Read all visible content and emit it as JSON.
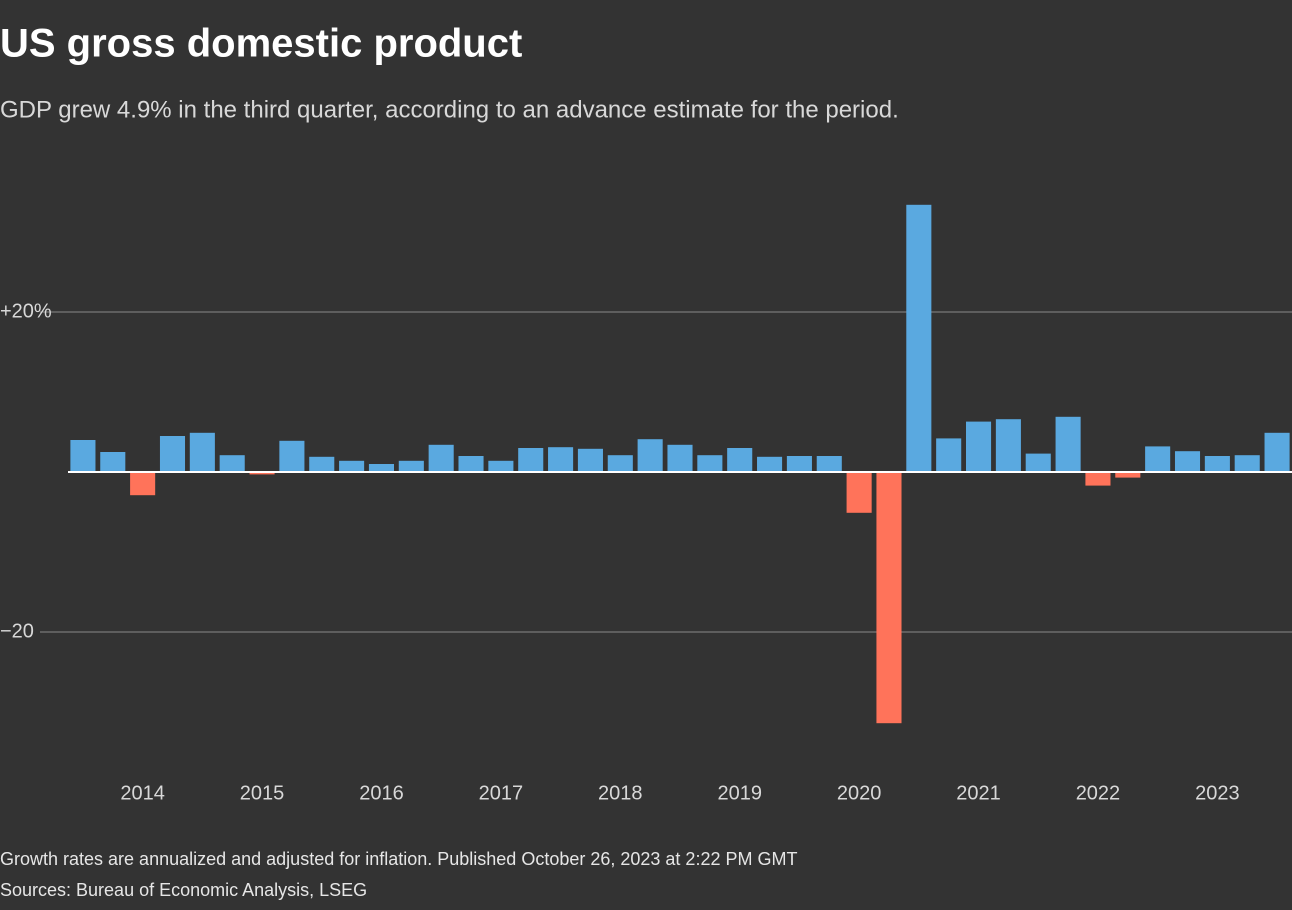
{
  "chart_data": {
    "type": "bar",
    "title": "US gross domestic product",
    "subtitle": "GDP grew 4.9% in the third quarter, according to an advance estimate for the period.",
    "categories": [
      null,
      null,
      "2014",
      null,
      null,
      null,
      "2015",
      null,
      null,
      null,
      "2016",
      null,
      null,
      null,
      "2017",
      null,
      null,
      null,
      "2018",
      null,
      null,
      null,
      "2019",
      null,
      null,
      null,
      "2020",
      null,
      null,
      null,
      "2021",
      null,
      null,
      null,
      "2022",
      null,
      null,
      null,
      "2023",
      null,
      null
    ],
    "values": [
      4.0,
      2.5,
      -2.9,
      4.5,
      4.9,
      2.1,
      -0.3,
      3.9,
      1.9,
      1.4,
      1.0,
      1.4,
      3.4,
      2.0,
      1.4,
      3.0,
      3.1,
      2.9,
      2.1,
      4.1,
      3.4,
      2.1,
      3.0,
      1.9,
      2.0,
      2.0,
      -5.1,
      -31.4,
      33.4,
      4.2,
      6.3,
      6.6,
      2.3,
      6.9,
      -1.7,
      -0.7,
      3.2,
      2.6,
      2.0,
      2.1,
      4.9
    ],
    "positive_color": "#5aa9e0",
    "negative_color": "#ff735a",
    "ylim": [
      -36,
      38
    ],
    "yticks": [
      {
        "value": 20,
        "label": "+20%"
      },
      {
        "value": -20,
        "label": "−20"
      }
    ],
    "grid": true,
    "notes": [
      "Growth rates are annualized and adjusted for inflation. Published October 26, 2023 at 2:22 PM GMT",
      "Sources: Bureau of Economic Analysis, LSEG"
    ]
  }
}
